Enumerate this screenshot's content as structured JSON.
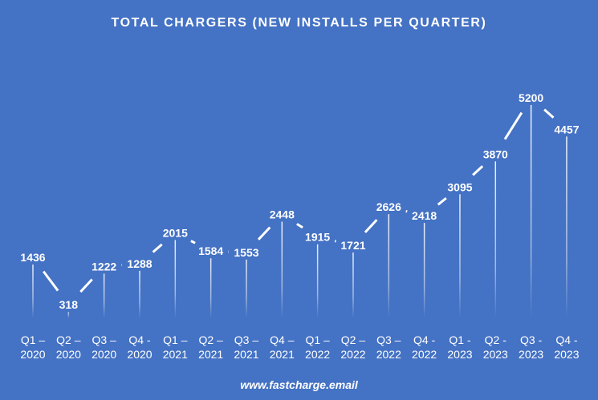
{
  "chart_data": {
    "type": "line",
    "title": "TOTAL CHARGERS (NEW INSTALLS PER QUARTER)",
    "categories": [
      [
        "Q1 –",
        "2020"
      ],
      [
        "Q2 –",
        "2020"
      ],
      [
        "Q3 –",
        "2020"
      ],
      [
        "Q4  -",
        "2020"
      ],
      [
        "Q1 –",
        "2021"
      ],
      [
        "Q2 –",
        "2021"
      ],
      [
        "Q3 –",
        "2021"
      ],
      [
        "Q4 –",
        "2021"
      ],
      [
        "Q1 –",
        "2022"
      ],
      [
        "Q2 –",
        "2022"
      ],
      [
        "Q3 –",
        "2022"
      ],
      [
        "Q4 -",
        "2022"
      ],
      [
        "Q1 -",
        "2023"
      ],
      [
        "Q2 -",
        "2023"
      ],
      [
        "Q3 -",
        "2023"
      ],
      [
        "Q4 -",
        "2023"
      ]
    ],
    "values": [
      1436,
      318,
      1222,
      1288,
      2015,
      1584,
      1553,
      2448,
      1915,
      1721,
      2626,
      2418,
      3095,
      3870,
      5200,
      4457
    ],
    "ylim": [
      0,
      5200
    ],
    "grid": false,
    "legend": "none",
    "line_color": "#FFFFFF",
    "background_color": "#4472C4"
  },
  "footer": {
    "url": "www.fastcharge.email"
  }
}
